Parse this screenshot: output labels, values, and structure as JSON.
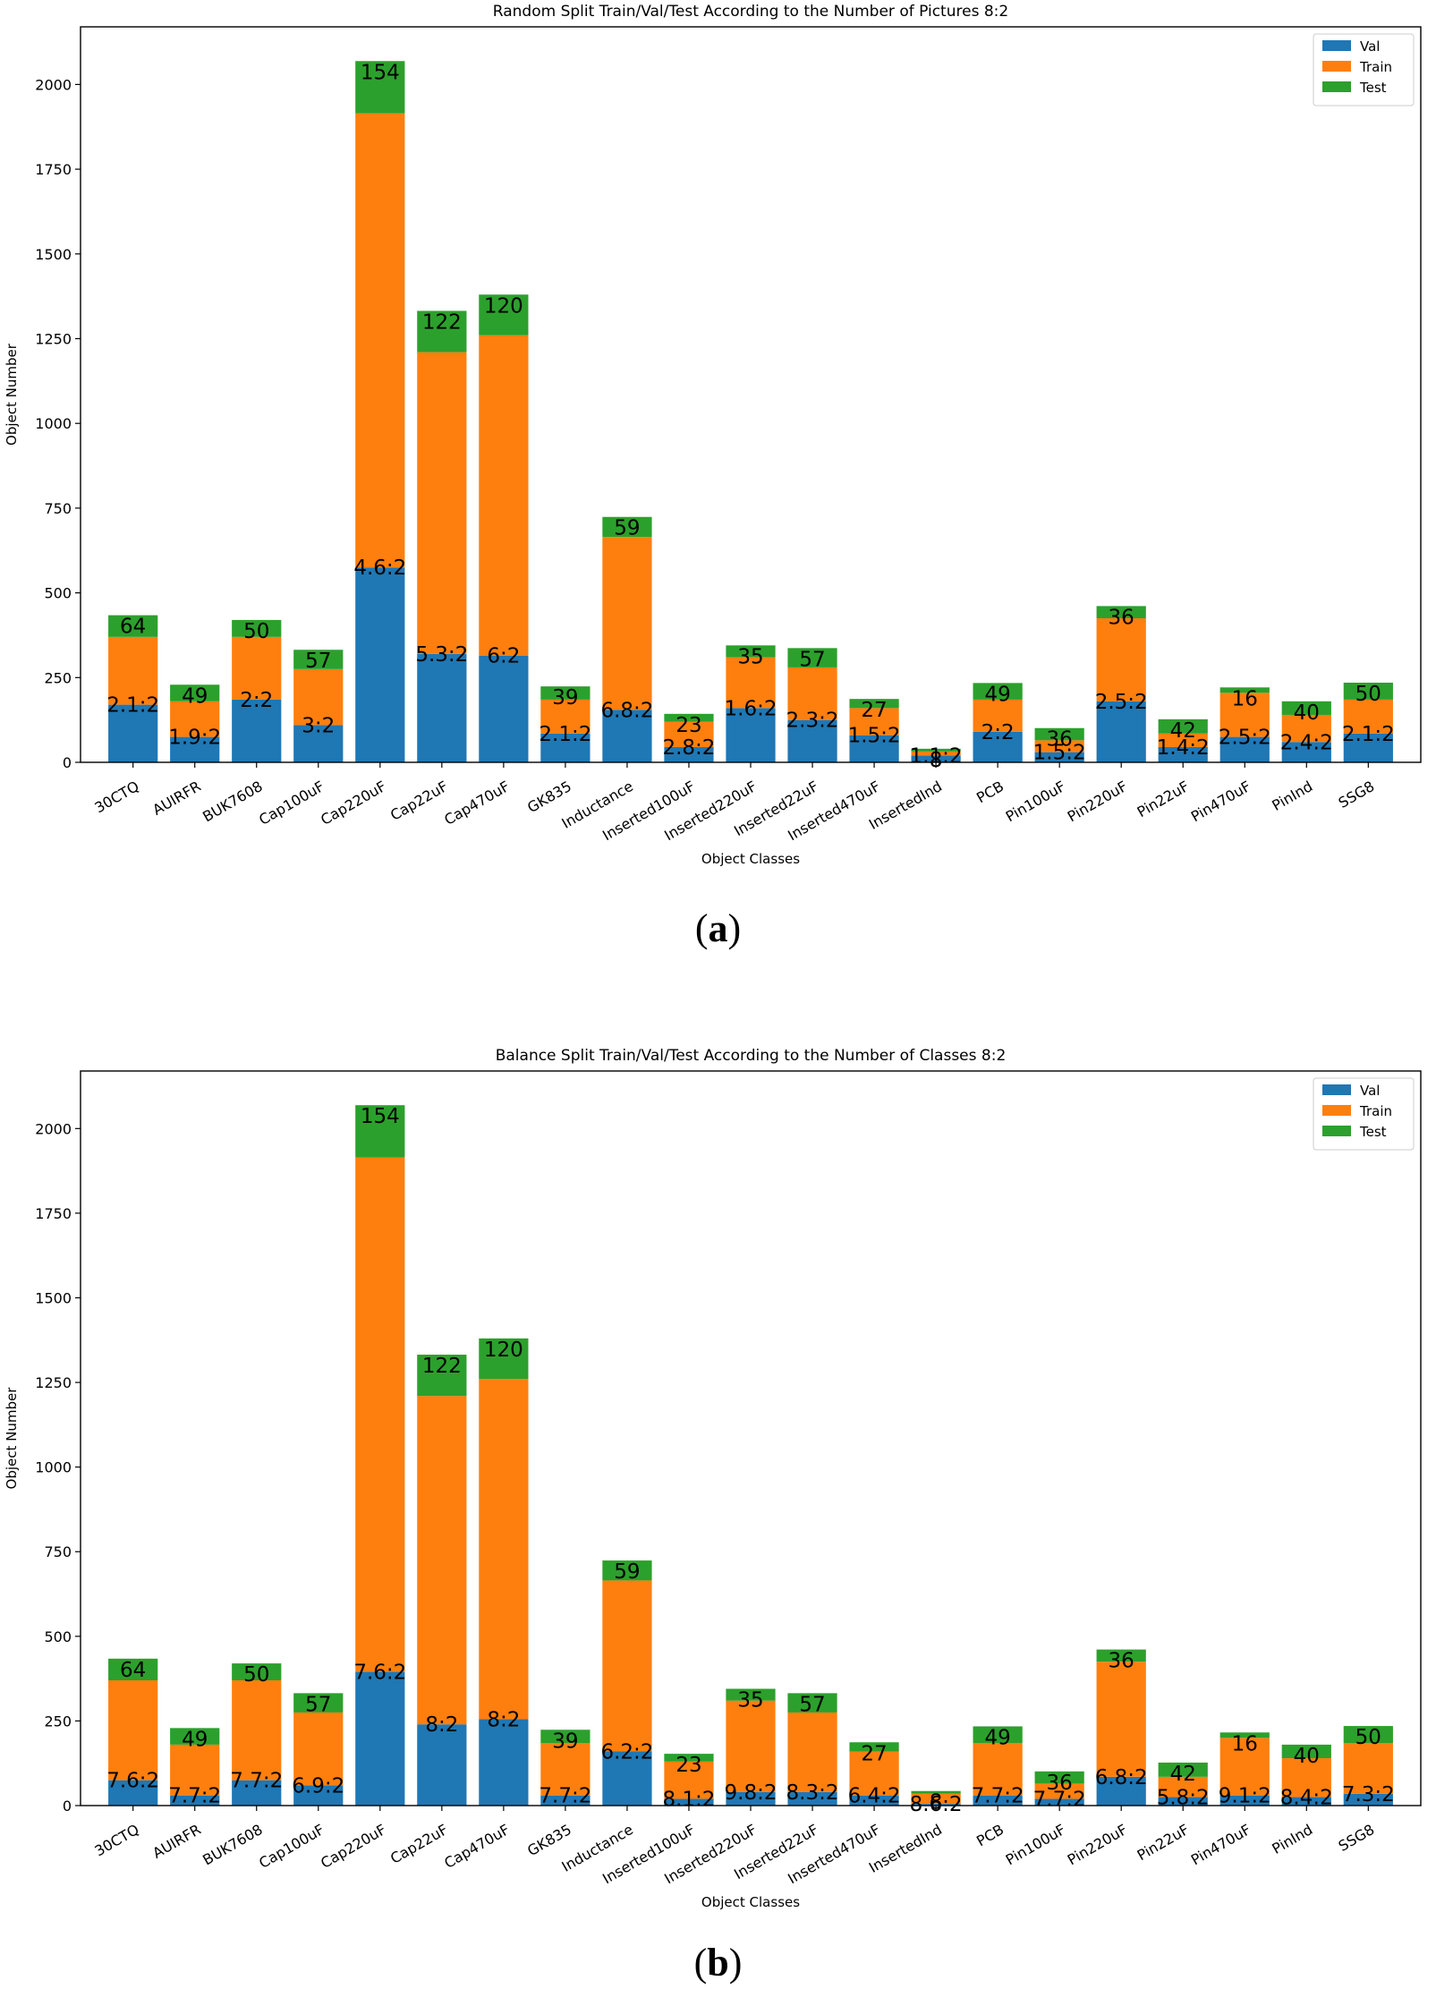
{
  "chart_data": [
    {
      "type": "bar",
      "stacked": true,
      "title": "Random Split Train/Val/Test According to the Number of Pictures 8:2",
      "xlabel": "Object Classes",
      "ylabel": "Object Number",
      "ylim": [
        0,
        2170
      ],
      "yticks": [
        0,
        250,
        500,
        750,
        1000,
        1250,
        1500,
        1750,
        2000
      ],
      "legend_position": "top-right",
      "caption_letter": "a",
      "categories": [
        "30CTQ",
        "AUIRFR",
        "BUK7608",
        "Cap100uF",
        "Cap220uF",
        "Cap22uF",
        "Cap470uF",
        "GK835",
        "Inductance",
        "Inserted100uF",
        "Inserted220uF",
        "Inserted22uF",
        "Inserted470uF",
        "InsertedInd",
        "PCB",
        "Pin100uF",
        "Pin220uF",
        "Pin22uF",
        "Pin470uF",
        "PinInd",
        "SSG8"
      ],
      "series": [
        {
          "name": "Val",
          "color": "#1f77b4",
          "values": [
            170,
            75,
            185,
            110,
            575,
            320,
            315,
            85,
            155,
            45,
            160,
            125,
            80,
            20,
            90,
            30,
            180,
            45,
            75,
            60,
            85
          ]
        },
        {
          "name": "Train",
          "color": "#ff7f0e",
          "values": [
            200,
            105,
            185,
            165,
            1340,
            890,
            945,
            100,
            510,
            75,
            150,
            155,
            80,
            12,
            95,
            35,
            245,
            40,
            130,
            80,
            100
          ]
        },
        {
          "name": "Test",
          "color": "#2ca02c",
          "values": [
            64,
            49,
            50,
            57,
            154,
            122,
            120,
            39,
            59,
            23,
            35,
            57,
            27,
            8,
            49,
            36,
            36,
            42,
            16,
            40,
            50
          ]
        }
      ],
      "ratio_labels": [
        "2.1:2",
        "1.9:2",
        "2:2",
        "3:2",
        "4.6:2",
        "5.3:2",
        "6:2",
        "2.1:2",
        "6.8:2",
        "2.8:2",
        "1.6:2",
        "2.3:2",
        "1.5:2",
        "1.1:2",
        "2:2",
        "1.5:2",
        "2.5:2",
        "1.4:2",
        "2.5:2",
        "2.4:2",
        "2.1:2"
      ],
      "test_labels": [
        "64",
        "49",
        "50",
        "57",
        "154",
        "122",
        "120",
        "39",
        "59",
        "23",
        "35",
        "57",
        "27",
        "8",
        "49",
        "36",
        "36",
        "42",
        "16",
        "40",
        "50"
      ]
    },
    {
      "type": "bar",
      "stacked": true,
      "title": "Balance Split Train/Val/Test According to the Number of Classes 8:2",
      "xlabel": "Object Classes",
      "ylabel": "Object Number",
      "ylim": [
        0,
        2170
      ],
      "yticks": [
        0,
        250,
        500,
        750,
        1000,
        1250,
        1500,
        1750,
        2000
      ],
      "legend_position": "top-right",
      "caption_letter": "b",
      "categories": [
        "30CTQ",
        "AUIRFR",
        "BUK7608",
        "Cap100uF",
        "Cap220uF",
        "Cap22uF",
        "Cap470uF",
        "GK835",
        "Inductance",
        "Inserted100uF",
        "Inserted220uF",
        "Inserted22uF",
        "Inserted470uF",
        "InsertedInd",
        "PCB",
        "Pin100uF",
        "Pin220uF",
        "Pin22uF",
        "Pin470uF",
        "PinInd",
        "SSG8"
      ],
      "series": [
        {
          "name": "Val",
          "color": "#1f77b4",
          "values": [
            75,
            30,
            75,
            60,
            395,
            240,
            255,
            30,
            160,
            20,
            40,
            40,
            30,
            5,
            30,
            20,
            85,
            25,
            30,
            25,
            35
          ]
        },
        {
          "name": "Train",
          "color": "#ff7f0e",
          "values": [
            295,
            150,
            295,
            215,
            1520,
            970,
            1005,
            155,
            505,
            110,
            270,
            235,
            130,
            30,
            155,
            45,
            340,
            60,
            170,
            115,
            150
          ]
        },
        {
          "name": "Test",
          "color": "#2ca02c",
          "values": [
            64,
            49,
            50,
            57,
            154,
            122,
            120,
            39,
            59,
            23,
            35,
            57,
            27,
            8,
            49,
            36,
            36,
            42,
            16,
            40,
            50
          ]
        }
      ],
      "ratio_labels": [
        "7.6:2",
        "7.7:2",
        "7.7:2",
        "6.9:2",
        "7.6:2",
        "8:2",
        "8:2",
        "7.7:2",
        "6.2:2",
        "8.1:2",
        "9.8:2",
        "8.3:2",
        "6.4:2",
        "8.6:2",
        "7.7:2",
        "7.7:2",
        "6.8:2",
        "5.8:2",
        "9.1:2",
        "8.4:2",
        "7.3:2"
      ],
      "test_labels": [
        "64",
        "49",
        "50",
        "57",
        "154",
        "122",
        "120",
        "39",
        "59",
        "23",
        "35",
        "57",
        "27",
        "8",
        "49",
        "36",
        "36",
        "42",
        "16",
        "40",
        "50"
      ]
    }
  ]
}
